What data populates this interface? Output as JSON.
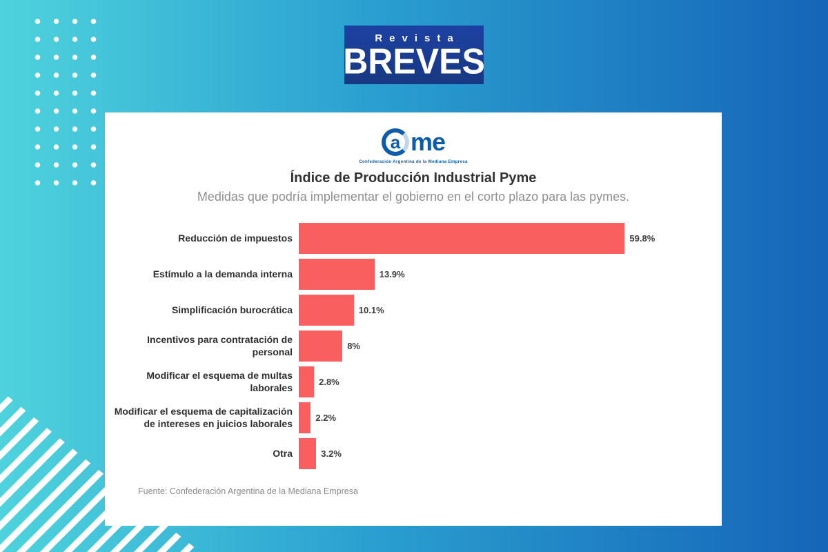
{
  "brand": {
    "top_label": "Revista",
    "main_label": "BREVES"
  },
  "came_logo": {
    "ring_letter": "a",
    "rest_letters": "me",
    "subtext": "Confederación Argentina de la Mediana Empresa"
  },
  "chart_data": {
    "type": "bar",
    "orientation": "horizontal",
    "title": "Índice de Producción Industrial Pyme",
    "subtitle": "Medidas que podría implementar el gobierno en el corto plazo para las pymes.",
    "categories": [
      "Reducción de impuestos",
      "Estímulo a la demanda interna",
      "Simplificación burocrática",
      "Incentivos para contratación de personal",
      "Modificar el esquema de multas laborales",
      "Modificar el esquema de capitalización de intereses en juicios laborales",
      "Otra"
    ],
    "values": [
      59.8,
      13.9,
      10.1,
      8,
      2.8,
      2.2,
      3.2
    ],
    "value_labels": [
      "59.8%",
      "13.9%",
      "10.1%",
      "8%",
      "2.8%",
      "2.2%",
      "3.2%"
    ],
    "bar_color": "#f95f5f",
    "xlim": [
      0,
      62
    ],
    "grid": false,
    "legend": false,
    "source": "Fuente: Confederación Argentina de la Mediana Empresa"
  },
  "colors": {
    "background_left": "#4ed3dd",
    "background_right": "#1565b8",
    "logo_box": "#1b3c98",
    "came_blue": "#0c5cab",
    "bar": "#f95f5f"
  }
}
